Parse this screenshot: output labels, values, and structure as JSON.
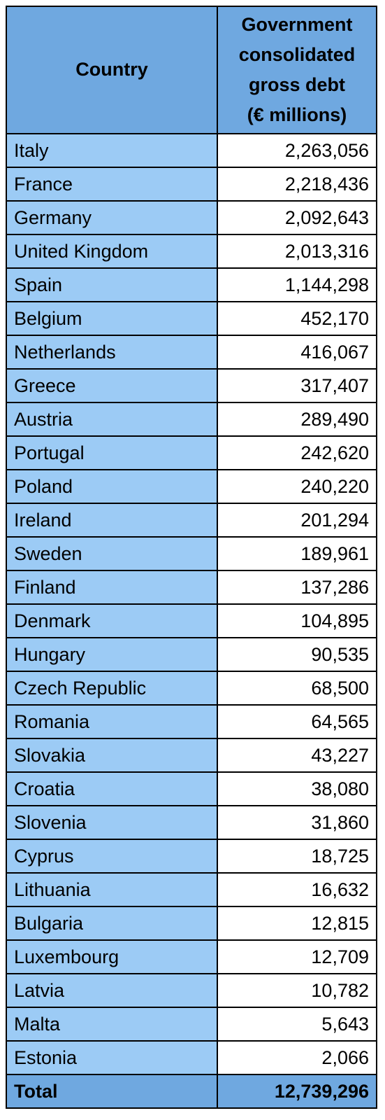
{
  "table": {
    "header": {
      "country": "Country",
      "debt_lines": [
        "Government",
        "consolidated",
        "gross debt",
        "(€ millions)"
      ]
    },
    "rows": [
      [
        "Italy",
        "2,263,056"
      ],
      [
        "France",
        "2,218,436"
      ],
      [
        "Germany",
        "2,092,643"
      ],
      [
        "United Kingdom",
        "2,013,316"
      ],
      [
        "Spain",
        "1,144,298"
      ],
      [
        "Belgium",
        "452,170"
      ],
      [
        "Netherlands",
        "416,067"
      ],
      [
        "Greece",
        "317,407"
      ],
      [
        "Austria",
        "289,490"
      ],
      [
        "Portugal",
        "242,620"
      ],
      [
        "Poland",
        "240,220"
      ],
      [
        "Ireland",
        "201,294"
      ],
      [
        "Sweden",
        "189,961"
      ],
      [
        "Finland",
        "137,286"
      ],
      [
        "Denmark",
        "104,895"
      ],
      [
        "Hungary",
        "90,535"
      ],
      [
        "Czech Republic",
        "68,500"
      ],
      [
        "Romania",
        "64,565"
      ],
      [
        "Slovakia",
        "43,227"
      ],
      [
        "Croatia",
        "38,080"
      ],
      [
        "Slovenia",
        "31,860"
      ],
      [
        "Cyprus",
        "18,725"
      ],
      [
        "Lithuania",
        "16,632"
      ],
      [
        "Bulgaria",
        "12,815"
      ],
      [
        "Luxembourg",
        "12,709"
      ],
      [
        "Latvia",
        "10,782"
      ],
      [
        "Malta",
        "5,643"
      ],
      [
        "Estonia",
        "2,066"
      ]
    ],
    "total": [
      "Total",
      "12,739,296"
    ]
  }
}
